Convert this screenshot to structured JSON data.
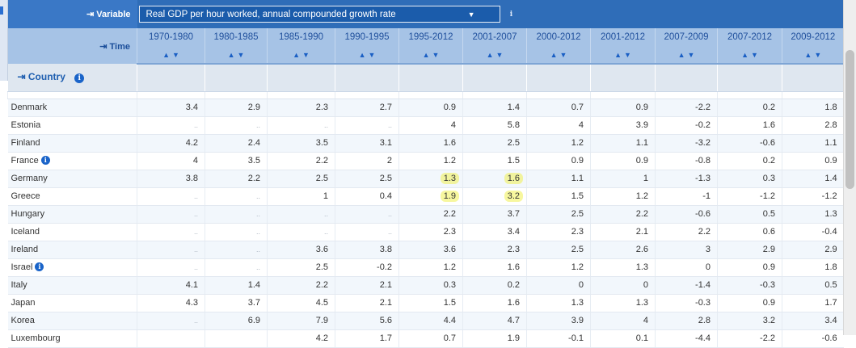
{
  "header": {
    "variable_label": "⇥ Variable",
    "variable_value": "Real GDP per hour worked, annual compounded growth rate",
    "time_label": "⇥ Time",
    "country_label": "⇥ Country"
  },
  "periods": [
    "1970-1980",
    "1980-1985",
    "1985-1990",
    "1990-1995",
    "1995-2012",
    "2001-2007",
    "2000-2012",
    "2001-2012",
    "2007-2009",
    "2007-2012",
    "2009-2012"
  ],
  "sort_up": "▲",
  "sort_down": "▼",
  "rows": [
    {
      "country": "Denmark",
      "flag": false,
      "values": [
        "3.4",
        "2.9",
        "2.3",
        "2.7",
        "0.9",
        "1.4",
        "0.7",
        "0.9",
        "-2.2",
        "0.2",
        "1.8"
      ]
    },
    {
      "country": "Estonia",
      "flag": false,
      "values": [
        "..",
        "..",
        "..",
        "..",
        "4",
        "5.8",
        "4",
        "3.9",
        "-0.2",
        "1.6",
        "2.8"
      ]
    },
    {
      "country": "Finland",
      "flag": false,
      "values": [
        "4.2",
        "2.4",
        "3.5",
        "3.1",
        "1.6",
        "2.5",
        "1.2",
        "1.1",
        "-3.2",
        "-0.6",
        "1.1"
      ]
    },
    {
      "country": "France",
      "flag": true,
      "values": [
        "4",
        "3.5",
        "2.2",
        "2",
        "1.2",
        "1.5",
        "0.9",
        "0.9",
        "-0.8",
        "0.2",
        "0.9"
      ]
    },
    {
      "country": "Germany",
      "flag": false,
      "values": [
        "3.8",
        "2.2",
        "2.5",
        "2.5",
        "1.3",
        "1.6",
        "1.1",
        "1",
        "-1.3",
        "0.3",
        "1.4"
      ]
    },
    {
      "country": "Greece",
      "flag": false,
      "values": [
        "..",
        "..",
        "1",
        "0.4",
        "1.9",
        "3.2",
        "1.5",
        "1.2",
        "-1",
        "-1.2",
        "-1.2"
      ]
    },
    {
      "country": "Hungary",
      "flag": false,
      "values": [
        "..",
        "..",
        "..",
        "..",
        "2.2",
        "3.7",
        "2.5",
        "2.2",
        "-0.6",
        "0.5",
        "1.3"
      ]
    },
    {
      "country": "Iceland",
      "flag": false,
      "values": [
        "..",
        "..",
        "..",
        "..",
        "2.3",
        "3.4",
        "2.3",
        "2.1",
        "2.2",
        "0.6",
        "-0.4"
      ]
    },
    {
      "country": "Ireland",
      "flag": false,
      "values": [
        "..",
        "..",
        "3.6",
        "3.8",
        "3.6",
        "2.3",
        "2.5",
        "2.6",
        "3",
        "2.9",
        "2.9"
      ]
    },
    {
      "country": "Israel",
      "flag": true,
      "values": [
        "..",
        "..",
        "2.5",
        "-0.2",
        "1.2",
        "1.6",
        "1.2",
        "1.3",
        "0",
        "0.9",
        "1.8"
      ]
    },
    {
      "country": "Italy",
      "flag": false,
      "values": [
        "4.1",
        "1.4",
        "2.2",
        "2.1",
        "0.3",
        "0.2",
        "0",
        "0",
        "-1.4",
        "-0.3",
        "0.5"
      ]
    },
    {
      "country": "Japan",
      "flag": false,
      "values": [
        "4.3",
        "3.7",
        "4.5",
        "2.1",
        "1.5",
        "1.6",
        "1.3",
        "1.3",
        "-0.3",
        "0.9",
        "1.7"
      ]
    },
    {
      "country": "Korea",
      "flag": false,
      "values": [
        "..",
        "6.9",
        "7.9",
        "5.6",
        "4.4",
        "4.7",
        "3.9",
        "4",
        "2.8",
        "3.2",
        "3.4"
      ]
    },
    {
      "country": "Luxembourg",
      "flag": false,
      "values": [
        "",
        "",
        "4.2",
        "1.7",
        "0.7",
        "1.9",
        "-0.1",
        "0.1",
        "-4.4",
        "-2.2",
        "-0.6"
      ]
    }
  ],
  "highlights": [
    [
      4,
      4
    ],
    [
      4,
      5
    ],
    [
      5,
      4
    ],
    [
      5,
      5
    ]
  ],
  "colors": {
    "header_blue": "#2f6db8",
    "time_row": "#a6c3e6",
    "highlight": "#f0f050"
  }
}
